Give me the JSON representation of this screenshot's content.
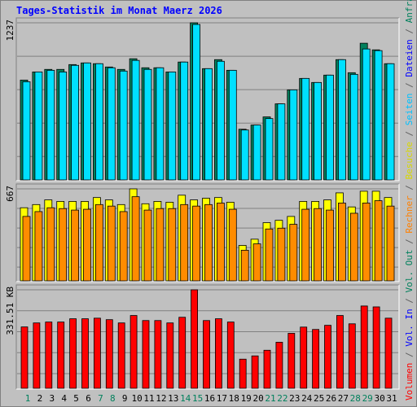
{
  "title": "Tages-Statistik im Monat Maerz 2026",
  "legend_separator": " / ",
  "legend": [
    {
      "name": "Volumen",
      "color": "#ff0000"
    },
    {
      "name": "Vol. In",
      "color": "#0000ff"
    },
    {
      "name": "Vol. Out",
      "color": "#00805c"
    },
    {
      "name": "Rechner",
      "color": "#ff8000"
    },
    {
      "name": "Besuche",
      "color": "#d8d800"
    },
    {
      "name": "Seiten",
      "color": "#00c0ff"
    },
    {
      "name": "Dateien",
      "color": "#0000ff"
    },
    {
      "name": "Anfragen",
      "color": "#00805c"
    }
  ],
  "chart_data": [
    {
      "type": "bar",
      "ylim": [
        0,
        1237
      ],
      "yticks": [
        1237
      ],
      "series": [
        {
          "color": "#00805c",
          "values": [
            786,
            850,
            870,
            870,
            908,
            921,
            915,
            889,
            870,
            954,
            883,
            883,
            850,
            928,
            1237,
            876,
            947,
            863,
            399,
            432,
            496,
            599,
            709,
            799,
            767,
            825,
            947,
            844,
            1076,
            1024,
            915
          ]
        },
        {
          "color": "#00e0ff",
          "values": [
            773,
            850,
            863,
            850,
            902,
            921,
            915,
            883,
            857,
            941,
            870,
            883,
            850,
            928,
            1224,
            876,
            934,
            863,
            393,
            432,
            483,
            599,
            709,
            799,
            767,
            825,
            947,
            831,
            1031,
            1018,
            915
          ]
        }
      ]
    },
    {
      "type": "bar",
      "ylim": [
        0,
        667
      ],
      "yticks": [
        667
      ],
      "series": [
        {
          "color": "#ffff00",
          "values": [
            530,
            553,
            587,
            576,
            576,
            576,
            604,
            587,
            553,
            667,
            559,
            576,
            570,
            621,
            587,
            599,
            604,
            570,
            257,
            302,
            422,
            439,
            467,
            576,
            576,
            587,
            638,
            536,
            650,
            650,
            604
          ]
        },
        {
          "color": "#ff8c00",
          "values": [
            467,
            502,
            530,
            524,
            513,
            519,
            553,
            542,
            502,
            610,
            513,
            524,
            524,
            553,
            542,
            553,
            564,
            519,
            222,
            268,
            376,
            382,
            410,
            519,
            524,
            513,
            564,
            490,
            564,
            581,
            542
          ]
        }
      ]
    },
    {
      "type": "bar",
      "ylim": [
        0,
        331.51
      ],
      "yticks": [
        {
          "value": 331.51,
          "label": "331.51 KB"
        }
      ],
      "series": [
        {
          "color": "#ff0000",
          "values": [
            206.5,
            220,
            223,
            223,
            234,
            234,
            236,
            231,
            220,
            245,
            228,
            228,
            220,
            239,
            331.51,
            228,
            234,
            223,
            98,
            109,
            128,
            155,
            185,
            206,
            198,
            212,
            245,
            217,
            277,
            274,
            236
          ]
        }
      ],
      "categories": [
        "1",
        "2",
        "3",
        "4",
        "5",
        "6",
        "7",
        "8",
        "9",
        "10",
        "11",
        "12",
        "13",
        "14",
        "15",
        "16",
        "17",
        "18",
        "19",
        "20",
        "21",
        "22",
        "23",
        "24",
        "25",
        "26",
        "27",
        "28",
        "29",
        "30",
        "31"
      ],
      "category_colors": [
        "#00805c",
        "#000000",
        "#000000",
        "#000000",
        "#000000",
        "#000000",
        "#00805c",
        "#00805c",
        "#000000",
        "#000000",
        "#000000",
        "#000000",
        "#000000",
        "#00805c",
        "#00805c",
        "#000000",
        "#000000",
        "#000000",
        "#000000",
        "#000000",
        "#00805c",
        "#00805c",
        "#000000",
        "#000000",
        "#000000",
        "#000000",
        "#000000",
        "#00805c",
        "#00805c",
        "#000000",
        "#000000"
      ]
    }
  ]
}
